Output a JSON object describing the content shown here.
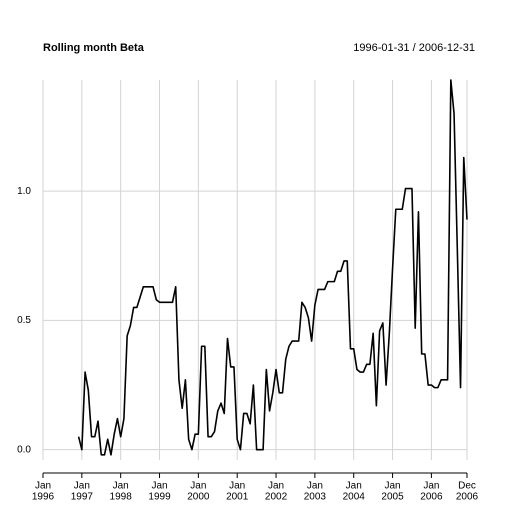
{
  "chart_data": {
    "type": "line",
    "title": "Rolling month Beta",
    "subtitle": "1996-01-31 / 2006-12-31",
    "x": [
      "1996-01",
      "1996-02",
      "1996-03",
      "1996-04",
      "1996-05",
      "1996-06",
      "1996-07",
      "1996-08",
      "1996-09",
      "1996-10",
      "1996-11",
      "1996-12",
      "1997-01",
      "1997-02",
      "1997-03",
      "1997-04",
      "1997-05",
      "1997-06",
      "1997-07",
      "1997-08",
      "1997-09",
      "1997-10",
      "1997-11",
      "1997-12",
      "1998-01",
      "1998-02",
      "1998-03",
      "1998-04",
      "1998-05",
      "1998-06",
      "1998-07",
      "1998-08",
      "1998-09",
      "1998-10",
      "1998-11",
      "1998-12",
      "1999-01",
      "1999-02",
      "1999-03",
      "1999-04",
      "1999-05",
      "1999-06",
      "1999-07",
      "1999-08",
      "1999-09",
      "1999-10",
      "1999-11",
      "1999-12",
      "2000-01",
      "2000-02",
      "2000-03",
      "2000-04",
      "2000-05",
      "2000-06",
      "2000-07",
      "2000-08",
      "2000-09",
      "2000-10",
      "2000-11",
      "2000-12",
      "2001-01",
      "2001-02",
      "2001-03",
      "2001-04",
      "2001-05",
      "2001-06",
      "2001-07",
      "2001-08",
      "2001-09",
      "2001-10",
      "2001-11",
      "2001-12",
      "2002-01",
      "2002-02",
      "2002-03",
      "2002-04",
      "2002-05",
      "2002-06",
      "2002-07",
      "2002-08",
      "2002-09",
      "2002-10",
      "2002-11",
      "2002-12",
      "2003-01",
      "2003-02",
      "2003-03",
      "2003-04",
      "2003-05",
      "2003-06",
      "2003-07",
      "2003-08",
      "2003-09",
      "2003-10",
      "2003-11",
      "2003-12",
      "2004-01",
      "2004-02",
      "2004-03",
      "2004-04",
      "2004-05",
      "2004-06",
      "2004-07",
      "2004-08",
      "2004-09",
      "2004-10",
      "2004-11",
      "2004-12",
      "2005-01",
      "2005-02",
      "2005-03",
      "2005-04",
      "2005-05",
      "2005-06",
      "2005-07",
      "2005-08",
      "2005-09",
      "2005-10",
      "2005-11",
      "2005-12",
      "2006-01",
      "2006-02",
      "2006-03",
      "2006-04",
      "2006-05",
      "2006-06",
      "2006-07",
      "2006-08",
      "2006-09",
      "2006-10",
      "2006-11",
      "2006-12"
    ],
    "series": [
      {
        "color": "#000000",
        "values": [
          null,
          null,
          null,
          null,
          null,
          null,
          null,
          null,
          null,
          null,
          null,
          0.05,
          0.0,
          0.3,
          0.23,
          0.05,
          0.05,
          0.11,
          -0.02,
          -0.02,
          0.04,
          -0.02,
          0.06,
          0.12,
          0.05,
          0.12,
          0.44,
          0.48,
          0.55,
          0.55,
          0.59,
          0.63,
          0.63,
          0.63,
          0.63,
          0.58,
          0.57,
          0.57,
          0.57,
          0.57,
          0.57,
          0.63,
          0.27,
          0.16,
          0.27,
          0.04,
          0.0,
          0.06,
          0.06,
          0.4,
          0.4,
          0.05,
          0.05,
          0.07,
          0.15,
          0.18,
          0.14,
          0.43,
          0.32,
          0.32,
          0.04,
          0.0,
          0.14,
          0.14,
          0.1,
          0.25,
          0.0,
          0.0,
          0.0,
          0.31,
          0.15,
          0.22,
          0.31,
          0.22,
          0.22,
          0.35,
          0.4,
          0.42,
          0.42,
          0.42,
          0.57,
          0.55,
          0.51,
          0.42,
          0.56,
          0.62,
          0.62,
          0.62,
          0.65,
          0.65,
          0.65,
          0.69,
          0.69,
          0.73,
          0.73,
          0.39,
          0.39,
          0.31,
          0.3,
          0.3,
          0.33,
          0.33,
          0.45,
          0.17,
          0.46,
          0.49,
          0.25,
          0.45,
          0.7,
          0.93,
          0.93,
          0.93,
          1.01,
          1.01,
          1.01,
          0.47,
          0.92,
          0.37,
          0.37,
          0.25,
          0.25,
          0.24,
          0.24,
          0.27,
          0.27,
          0.27,
          1.43,
          1.3,
          0.78,
          0.24,
          1.13,
          0.89
        ]
      }
    ],
    "xlim": [
      "1996-01",
      "2006-12"
    ],
    "xticks": [
      {
        "value": "1996-01",
        "label": [
          "Jan",
          "1996"
        ]
      },
      {
        "value": "1997-01",
        "label": [
          "Jan",
          "1997"
        ]
      },
      {
        "value": "1998-01",
        "label": [
          "Jan",
          "1998"
        ]
      },
      {
        "value": "1999-01",
        "label": [
          "Jan",
          "1999"
        ]
      },
      {
        "value": "2000-01",
        "label": [
          "Jan",
          "2000"
        ]
      },
      {
        "value": "2001-01",
        "label": [
          "Jan",
          "2001"
        ]
      },
      {
        "value": "2002-01",
        "label": [
          "Jan",
          "2002"
        ]
      },
      {
        "value": "2003-01",
        "label": [
          "Jan",
          "2003"
        ]
      },
      {
        "value": "2004-01",
        "label": [
          "Jan",
          "2004"
        ]
      },
      {
        "value": "2005-01",
        "label": [
          "Jan",
          "2005"
        ]
      },
      {
        "value": "2006-01",
        "label": [
          "Jan",
          "2006"
        ]
      },
      {
        "value": "2006-12",
        "label": [
          "Dec",
          "2006"
        ]
      }
    ],
    "ylim": [
      -0.04,
      1.43
    ],
    "yticks": [
      {
        "value": 0,
        "label": "0.0"
      },
      0.5,
      {
        "value": 1,
        "label": "1.0"
      }
    ],
    "grid": true
  }
}
